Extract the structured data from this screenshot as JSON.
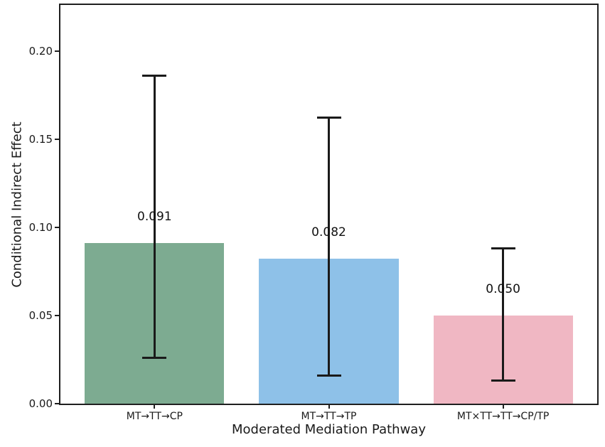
{
  "figure": {
    "background": "#ffffff",
    "spine_color": "#1f1f1f",
    "text_color": "#1a1a1a"
  },
  "chart_data": {
    "type": "bar",
    "title": "",
    "xlabel": "Moderated Mediation Pathway",
    "ylabel": "Conditional Indirect Effect",
    "categories": [
      "MT→TT→CP",
      "MT→TT→TP",
      "MT×TT→TT→CP/TP"
    ],
    "values": [
      0.091,
      0.082,
      0.05
    ],
    "value_labels": [
      "0.091",
      "0.082",
      "0.050"
    ],
    "error_low": [
      0.026,
      0.016,
      0.013
    ],
    "error_high": [
      0.186,
      0.162,
      0.088
    ],
    "bar_colors": [
      "#7dab91",
      "#8ec1e8",
      "#f0b7c3"
    ],
    "error_bar_color": "#1a1a1a",
    "ylim": [
      0,
      0.226
    ],
    "yticks": [
      0,
      0.05,
      0.1,
      0.15,
      0.2
    ],
    "ytick_labels": [
      "0.00",
      "0.05",
      "0.10",
      "0.15",
      "0.20"
    ],
    "bar_width_fraction": 0.8,
    "x_axis_padding": 0.54,
    "grid": false,
    "legend": null
  }
}
